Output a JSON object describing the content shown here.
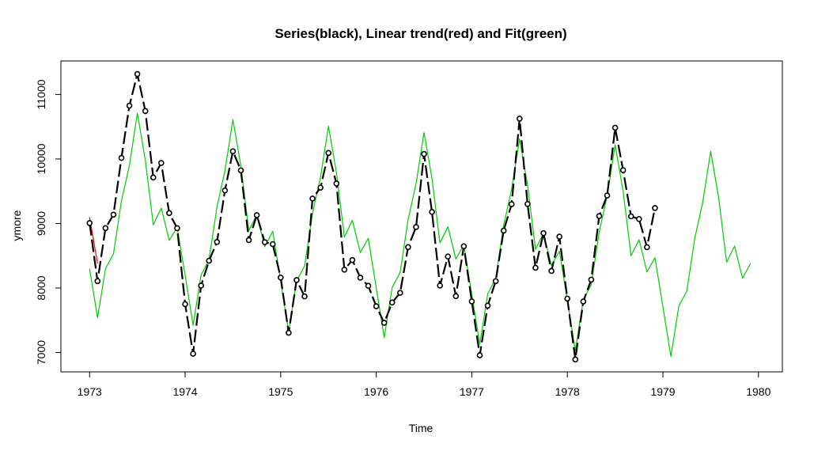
{
  "chart_data": {
    "type": "line",
    "title": "Series(black), Linear trend(red) and Fit(green)",
    "xlabel": "Time",
    "ylabel": "ymore",
    "xlim": [
      1972.7,
      1980.25
    ],
    "ylim": [
      6700,
      11520
    ],
    "x_ticks": [
      1973,
      1974,
      1975,
      1976,
      1977,
      1978,
      1979,
      1980
    ],
    "y_ticks": [
      7000,
      8000,
      9000,
      10000,
      11000
    ],
    "grid": false,
    "legend": "none",
    "series": [
      {
        "color": "#000000",
        "style": "dashed-line-with-open-circles",
        "start": 1973,
        "step": 0.083333,
        "values": [
          9007,
          8106,
          8928,
          9137,
          10017,
          10826,
          11317,
          10744,
          9713,
          9938,
          9161,
          8927,
          7750,
          6981,
          8038,
          8422,
          8714,
          9512,
          10120,
          9823,
          8743,
          9129,
          8710,
          8680,
          8162,
          7306,
          8124,
          7870,
          9387,
          9556,
          10093,
          9620,
          8285,
          8433,
          8160,
          8034,
          7717,
          7461,
          7776,
          7925,
          8634,
          8945,
          10078,
          9179,
          8037,
          8488,
          7874,
          8647,
          7792,
          6957,
          7726,
          8106,
          8890,
          9299,
          10625,
          9302,
          8314,
          8850,
          8265,
          8796,
          7836,
          6892,
          7791,
          8129,
          9115,
          9434,
          10484,
          9827,
          9110,
          9070,
          8633,
          9240
        ]
      },
      {
        "color": "#ff0000",
        "style": "line",
        "start": 1973,
        "step": 0.083333,
        "values": [
          9100,
          8381
        ]
      },
      {
        "color": "#00cc00",
        "style": "line",
        "start": 1973,
        "step": 0.083333,
        "values": [
          8300,
          7540,
          8300,
          8530,
          9350,
          9900,
          10710,
          9980,
          8980,
          9240,
          8740,
          8940,
          8200,
          7420,
          8200,
          8440,
          9260,
          9820,
          10610,
          9890,
          8890,
          9140,
          8640,
          8880,
          8100,
          7320,
          8110,
          8340,
          9160,
          9720,
          10510,
          9790,
          8790,
          9050,
          8550,
          8770,
          8000,
          7230,
          8010,
          8240,
          9060,
          9620,
          10410,
          9700,
          8700,
          8950,
          8450,
          8670,
          7900,
          7130,
          7910,
          8150,
          8970,
          9530,
          10310,
          9600,
          8600,
          8850,
          8350,
          8570,
          7810,
          7030,
          7820,
          8050,
          8870,
          9430,
          10220,
          9500,
          8500,
          8750,
          8250,
          8470,
          7710,
          6940,
          7720,
          7950,
          8770,
          9330,
          10120,
          9400,
          8400,
          8650,
          8150,
          8380
        ]
      }
    ]
  }
}
